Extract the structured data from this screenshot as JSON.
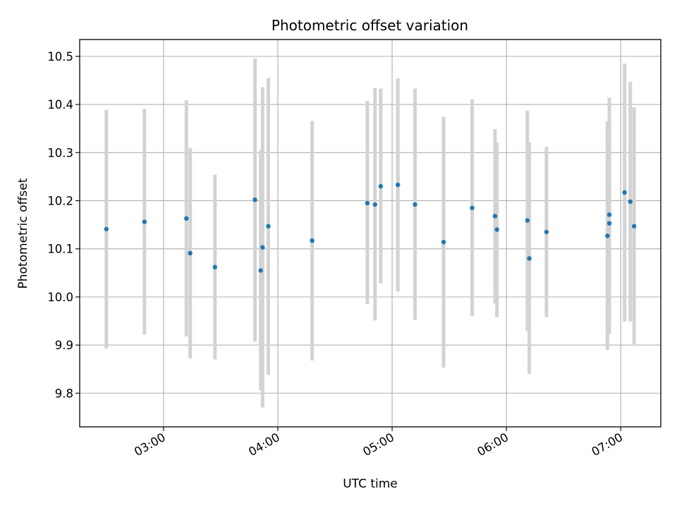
{
  "chart_data": {
    "type": "scatter",
    "title": "Photometric offset variation",
    "xlabel": "UTC time",
    "ylabel": "Photometric offset",
    "x_unit": "UTC time (HH:MM)",
    "xlim": [
      "02:16",
      "07:21"
    ],
    "ylim": [
      9.73,
      10.535
    ],
    "x_ticks": [
      "03:00",
      "04:00",
      "05:00",
      "06:00",
      "07:00"
    ],
    "y_ticks": [
      9.8,
      9.9,
      10.0,
      10.1,
      10.2,
      10.3,
      10.4,
      10.5
    ],
    "y_tick_labels": [
      "9.8",
      "9.9",
      "10.0",
      "10.1",
      "10.2",
      "10.3",
      "10.4",
      "10.5"
    ],
    "grid": true,
    "series": [
      {
        "color": "#1f77b4",
        "error_color": "#d3d3d3",
        "points": [
          {
            "x": "02:30",
            "y": 10.141,
            "y_low": 9.893,
            "y_high": 10.389
          },
          {
            "x": "02:50",
            "y": 10.156,
            "y_low": 9.922,
            "y_high": 10.391
          },
          {
            "x": "03:12",
            "y": 10.163,
            "y_low": 9.918,
            "y_high": 10.409
          },
          {
            "x": "03:14",
            "y": 10.091,
            "y_low": 9.872,
            "y_high": 10.309
          },
          {
            "x": "03:27",
            "y": 10.062,
            "y_low": 9.87,
            "y_high": 10.254
          },
          {
            "x": "03:48",
            "y": 10.202,
            "y_low": 9.907,
            "y_high": 10.496
          },
          {
            "x": "03:51",
            "y": 10.055,
            "y_low": 9.806,
            "y_high": 10.305
          },
          {
            "x": "03:52",
            "y": 10.103,
            "y_low": 9.77,
            "y_high": 10.436
          },
          {
            "x": "03:55",
            "y": 10.147,
            "y_low": 9.838,
            "y_high": 10.455
          },
          {
            "x": "04:18",
            "y": 10.117,
            "y_low": 9.868,
            "y_high": 10.366
          },
          {
            "x": "04:47",
            "y": 10.195,
            "y_low": 9.985,
            "y_high": 10.407
          },
          {
            "x": "04:51",
            "y": 10.192,
            "y_low": 9.951,
            "y_high": 10.434
          },
          {
            "x": "04:54",
            "y": 10.23,
            "y_low": 10.028,
            "y_high": 10.433
          },
          {
            "x": "05:03",
            "y": 10.233,
            "y_low": 10.011,
            "y_high": 10.454
          },
          {
            "x": "05:12",
            "y": 10.192,
            "y_low": 9.952,
            "y_high": 10.433
          },
          {
            "x": "05:27",
            "y": 10.114,
            "y_low": 9.853,
            "y_high": 10.374
          },
          {
            "x": "05:42",
            "y": 10.185,
            "y_low": 9.96,
            "y_high": 10.411
          },
          {
            "x": "05:54",
            "y": 10.168,
            "y_low": 9.986,
            "y_high": 10.349
          },
          {
            "x": "05:55",
            "y": 10.14,
            "y_low": 9.958,
            "y_high": 10.321
          },
          {
            "x": "06:11",
            "y": 10.159,
            "y_low": 9.929,
            "y_high": 10.387
          },
          {
            "x": "06:12",
            "y": 10.08,
            "y_low": 9.84,
            "y_high": 10.321
          },
          {
            "x": "06:21",
            "y": 10.135,
            "y_low": 9.958,
            "y_high": 10.312
          },
          {
            "x": "06:53",
            "y": 10.127,
            "y_low": 9.89,
            "y_high": 10.365
          },
          {
            "x": "06:54",
            "y": 10.171,
            "y_low": 9.923,
            "y_high": 10.414
          },
          {
            "x": "06:54",
            "y": 10.153,
            "y_low": 9.94,
            "y_high": 10.38
          },
          {
            "x": "07:02",
            "y": 10.217,
            "y_low": 9.949,
            "y_high": 10.485
          },
          {
            "x": "07:05",
            "y": 10.198,
            "y_low": 9.949,
            "y_high": 10.447
          },
          {
            "x": "07:07",
            "y": 10.147,
            "y_low": 9.899,
            "y_high": 10.394
          }
        ]
      }
    ]
  }
}
